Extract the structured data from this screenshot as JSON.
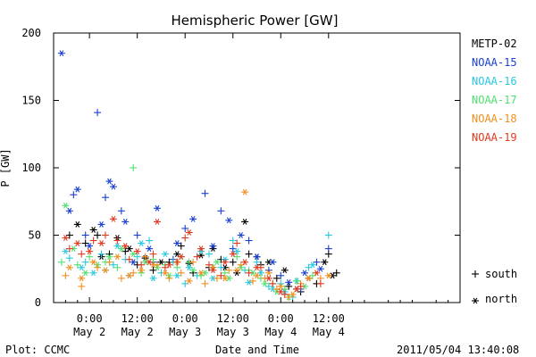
{
  "chart_data": {
    "type": "scatter",
    "title": "Hemispheric Power [GW]",
    "xlabel": "Date and Time",
    "ylabel": "P [GW]",
    "ylim": [
      0,
      200
    ],
    "yticks": [
      0,
      50,
      100,
      150,
      200
    ],
    "xlim_hours": [
      -9,
      93
    ],
    "xticks": [
      {
        "hour": 0,
        "time": "0:00",
        "date": "May 2"
      },
      {
        "hour": 12,
        "time": "12:00",
        "date": "May 2"
      },
      {
        "hour": 24,
        "time": "0:00",
        "date": "May 3"
      },
      {
        "hour": 36,
        "time": "12:00",
        "date": "May 3"
      },
      {
        "hour": 48,
        "time": "0:00",
        "date": "May 4"
      },
      {
        "hour": 60,
        "time": "12:00",
        "date": "May 4"
      }
    ],
    "legend_placement": "right",
    "marker_legend": [
      {
        "symbol": "+",
        "label": "south"
      },
      {
        "symbol": "*",
        "label": "north"
      }
    ],
    "series": [
      {
        "name": "METP-02",
        "color": "#000000",
        "north": [
          [
            -3,
            58
          ],
          [
            1,
            54
          ],
          [
            3,
            34
          ],
          [
            7,
            48
          ],
          [
            10,
            40
          ],
          [
            14,
            33
          ],
          [
            18,
            30
          ],
          [
            22,
            36
          ],
          [
            25,
            29
          ],
          [
            28,
            35
          ],
          [
            31,
            40
          ],
          [
            34,
            26
          ],
          [
            37,
            22
          ],
          [
            39,
            60
          ],
          [
            42,
            34
          ],
          [
            45,
            30
          ],
          [
            49,
            24
          ],
          [
            52,
            10
          ],
          [
            55,
            18
          ],
          [
            59,
            30
          ],
          [
            61,
            20
          ]
        ],
        "south": [
          [
            -5,
            50
          ],
          [
            -1,
            44
          ],
          [
            2,
            50
          ],
          [
            5,
            36
          ],
          [
            9,
            38
          ],
          [
            12,
            28
          ],
          [
            16,
            24
          ],
          [
            20,
            30
          ],
          [
            23,
            42
          ],
          [
            26,
            22
          ],
          [
            30,
            26
          ],
          [
            33,
            32
          ],
          [
            36,
            30
          ],
          [
            40,
            36
          ],
          [
            43,
            28
          ],
          [
            47,
            18
          ],
          [
            50,
            12
          ],
          [
            53,
            8
          ],
          [
            57,
            14
          ],
          [
            60,
            36
          ],
          [
            62,
            22
          ]
        ]
      },
      {
        "name": "NOAA-15",
        "color": "#1a3fd0",
        "north": [
          [
            -7,
            185
          ],
          [
            -5,
            68
          ],
          [
            -3,
            84
          ],
          [
            0,
            42
          ],
          [
            3,
            58
          ],
          [
            5,
            90
          ],
          [
            6,
            86
          ],
          [
            9,
            60
          ],
          [
            11,
            30
          ],
          [
            15,
            40
          ],
          [
            17,
            70
          ],
          [
            22,
            44
          ],
          [
            26,
            62
          ],
          [
            31,
            42
          ],
          [
            35,
            61
          ],
          [
            38,
            50
          ],
          [
            42,
            34
          ],
          [
            46,
            30
          ],
          [
            50,
            15
          ],
          [
            54,
            22
          ],
          [
            58,
            25
          ]
        ],
        "south": [
          [
            -4,
            80
          ],
          [
            -1,
            50
          ],
          [
            2,
            141
          ],
          [
            4,
            78
          ],
          [
            8,
            68
          ],
          [
            12,
            50
          ],
          [
            16,
            30
          ],
          [
            21,
            32
          ],
          [
            24,
            55
          ],
          [
            29,
            81
          ],
          [
            33,
            68
          ],
          [
            36,
            40
          ],
          [
            40,
            46
          ],
          [
            45,
            24
          ],
          [
            48,
            20
          ],
          [
            53,
            10
          ],
          [
            57,
            30
          ],
          [
            60,
            40
          ]
        ]
      },
      {
        "name": "NOAA-16",
        "color": "#28c8e0",
        "north": [
          [
            -6,
            38
          ],
          [
            -2,
            26
          ],
          [
            1,
            22
          ],
          [
            4,
            24
          ],
          [
            7,
            42
          ],
          [
            10,
            20
          ],
          [
            13,
            44
          ],
          [
            16,
            18
          ],
          [
            19,
            36
          ],
          [
            22,
            20
          ],
          [
            25,
            26
          ],
          [
            28,
            38
          ],
          [
            31,
            18
          ],
          [
            34,
            32
          ],
          [
            37,
            38
          ],
          [
            40,
            15
          ],
          [
            43,
            22
          ],
          [
            46,
            10
          ],
          [
            49,
            8
          ],
          [
            52,
            16
          ],
          [
            56,
            28
          ]
        ],
        "south": [
          [
            -5,
            33
          ],
          [
            -1,
            30
          ],
          [
            3,
            36
          ],
          [
            6,
            28
          ],
          [
            9,
            32
          ],
          [
            12,
            34
          ],
          [
            15,
            46
          ],
          [
            18,
            22
          ],
          [
            21,
            30
          ],
          [
            24,
            14
          ],
          [
            27,
            20
          ],
          [
            30,
            36
          ],
          [
            33,
            26
          ],
          [
            36,
            46
          ],
          [
            39,
            24
          ],
          [
            42,
            30
          ],
          [
            45,
            12
          ],
          [
            48,
            14
          ],
          [
            51,
            4
          ],
          [
            55,
            26
          ],
          [
            60,
            50
          ]
        ]
      },
      {
        "name": "NOAA-17",
        "color": "#50e070",
        "north": [
          [
            -6,
            72
          ],
          [
            -4,
            40
          ],
          [
            -1,
            22
          ],
          [
            2,
            28
          ],
          [
            5,
            34
          ],
          [
            8,
            40
          ],
          [
            11,
            36
          ],
          [
            14,
            30
          ],
          [
            17,
            26
          ],
          [
            20,
            20
          ],
          [
            23,
            34
          ],
          [
            26,
            24
          ],
          [
            29,
            22
          ],
          [
            32,
            30
          ],
          [
            35,
            18
          ],
          [
            38,
            26
          ],
          [
            41,
            22
          ],
          [
            44,
            14
          ],
          [
            47,
            8
          ],
          [
            50,
            4
          ],
          [
            54,
            12
          ]
        ],
        "south": [
          [
            -7,
            30
          ],
          [
            -3,
            28
          ],
          [
            0,
            34
          ],
          [
            4,
            30
          ],
          [
            7,
            26
          ],
          [
            11,
            100
          ],
          [
            13,
            22
          ],
          [
            16,
            32
          ],
          [
            19,
            28
          ],
          [
            22,
            26
          ],
          [
            25,
            30
          ],
          [
            28,
            20
          ],
          [
            31,
            26
          ],
          [
            34,
            22
          ],
          [
            37,
            34
          ],
          [
            40,
            24
          ],
          [
            43,
            18
          ],
          [
            46,
            14
          ],
          [
            49,
            10
          ],
          [
            52,
            16
          ],
          [
            56,
            20
          ]
        ]
      },
      {
        "name": "NOAA-18",
        "color": "#f09020",
        "north": [
          [
            -5,
            26
          ],
          [
            -2,
            18
          ],
          [
            1,
            30
          ],
          [
            4,
            24
          ],
          [
            7,
            34
          ],
          [
            10,
            20
          ],
          [
            13,
            24
          ],
          [
            16,
            28
          ],
          [
            19,
            22
          ],
          [
            22,
            30
          ],
          [
            25,
            16
          ],
          [
            28,
            22
          ],
          [
            31,
            26
          ],
          [
            34,
            18
          ],
          [
            37,
            24
          ],
          [
            39,
            82
          ],
          [
            42,
            20
          ],
          [
            45,
            22
          ],
          [
            48,
            12
          ],
          [
            51,
            6
          ],
          [
            55,
            18
          ],
          [
            60,
            20
          ]
        ],
        "south": [
          [
            -6,
            20
          ],
          [
            -2,
            12
          ],
          [
            2,
            26
          ],
          [
            5,
            30
          ],
          [
            8,
            18
          ],
          [
            11,
            22
          ],
          [
            14,
            34
          ],
          [
            17,
            28
          ],
          [
            20,
            18
          ],
          [
            23,
            22
          ],
          [
            26,
            30
          ],
          [
            29,
            14
          ],
          [
            32,
            18
          ],
          [
            35,
            24
          ],
          [
            38,
            28
          ],
          [
            41,
            16
          ],
          [
            44,
            18
          ],
          [
            47,
            10
          ],
          [
            50,
            4
          ],
          [
            53,
            14
          ],
          [
            58,
            18
          ]
        ]
      },
      {
        "name": "NOAA-19",
        "color": "#e03a20",
        "north": [
          [
            -6,
            48
          ],
          [
            -3,
            44
          ],
          [
            0,
            38
          ],
          [
            3,
            44
          ],
          [
            6,
            62
          ],
          [
            9,
            42
          ],
          [
            12,
            38
          ],
          [
            15,
            30
          ],
          [
            17,
            60
          ],
          [
            20,
            28
          ],
          [
            23,
            34
          ],
          [
            25,
            52
          ],
          [
            28,
            40
          ],
          [
            31,
            24
          ],
          [
            34,
            30
          ],
          [
            36,
            36
          ],
          [
            39,
            30
          ],
          [
            42,
            26
          ],
          [
            45,
            18
          ],
          [
            48,
            8
          ],
          [
            52,
            10
          ],
          [
            57,
            22
          ]
        ],
        "south": [
          [
            -5,
            40
          ],
          [
            -2,
            36
          ],
          [
            1,
            46
          ],
          [
            4,
            50
          ],
          [
            7,
            46
          ],
          [
            10,
            32
          ],
          [
            13,
            28
          ],
          [
            16,
            36
          ],
          [
            19,
            26
          ],
          [
            22,
            30
          ],
          [
            24,
            48
          ],
          [
            27,
            34
          ],
          [
            30,
            28
          ],
          [
            33,
            20
          ],
          [
            37,
            44
          ],
          [
            40,
            22
          ],
          [
            43,
            26
          ],
          [
            46,
            14
          ],
          [
            49,
            6
          ],
          [
            53,
            12
          ],
          [
            58,
            14
          ]
        ]
      }
    ]
  },
  "footer": {
    "plot_source": "Plot: CCMC",
    "timestamp": "2011/05/04 13:40:08"
  }
}
